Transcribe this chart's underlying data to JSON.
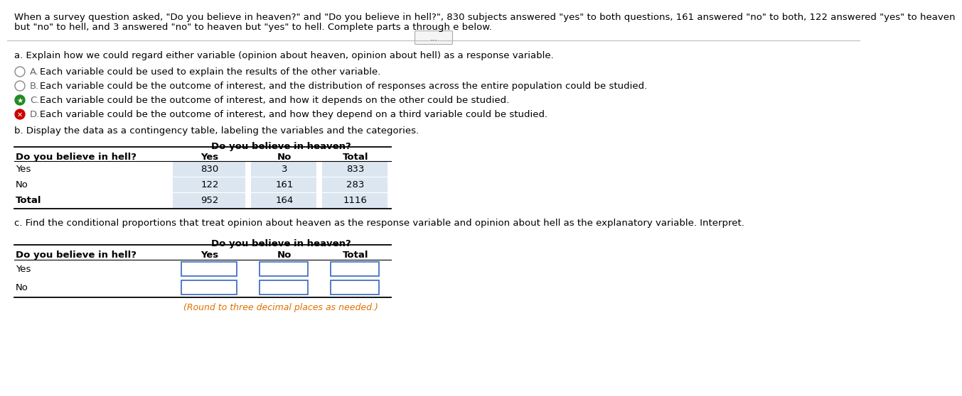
{
  "intro_line1": "When a survey question asked, \"Do you believe in heaven?\" and \"Do you believe in hell?\", 830 subjects answered \"yes\" to both questions, 161 answered \"no\" to both, 122 answered \"yes\" to heaven",
  "intro_line2": "but \"no\" to hell, and 3 answered \"no\" to heaven but \"yes\" to hell. Complete parts a through e below.",
  "ellipsis_button": "...",
  "part_a_label": "a. Explain how we could regard either variable (opinion about heaven, opinion about hell) as a response variable.",
  "options": [
    {
      "letter": "A",
      "text": "Each variable could be used to explain the results of the other variable.",
      "selected": false,
      "correct": false,
      "wrong": false
    },
    {
      "letter": "B",
      "text": "Each variable could be the outcome of interest, and the distribution of responses across the entire population could be studied.",
      "selected": false,
      "correct": false,
      "wrong": false
    },
    {
      "letter": "C",
      "text": "Each variable could be the outcome of interest, and how it depends on the other could be studied.",
      "selected": true,
      "correct": true,
      "wrong": false
    },
    {
      "letter": "D",
      "text": "Each variable could be the outcome of interest, and how they depend on a third variable could be studied.",
      "selected": true,
      "correct": false,
      "wrong": true
    }
  ],
  "part_b_label": "b. Display the data as a contingency table, labeling the variables and the categories.",
  "table1_header_col": "Do you believe in heaven?",
  "table1_row_header": "Do you believe in hell?",
  "table1_cols": [
    "Yes",
    "No",
    "Total"
  ],
  "table1_rows": [
    "Yes",
    "No",
    "Total"
  ],
  "table1_data": [
    [
      830,
      3,
      833
    ],
    [
      122,
      161,
      283
    ],
    [
      952,
      164,
      1116
    ]
  ],
  "part_c_label": "c. Find the conditional proportions that treat opinion about heaven as the response variable and opinion about hell as the explanatory variable. Interpret.",
  "table2_header_col": "Do you believe in heaven?",
  "table2_row_header": "Do you believe in hell?",
  "table2_cols": [
    "Yes",
    "No",
    "Total"
  ],
  "table2_rows": [
    "Yes",
    "No"
  ],
  "table2_note": "(Round to three decimal places as needed.)",
  "bg_color": "#ffffff",
  "text_color": "#000000",
  "cell_highlight_color": "#dce6f1",
  "input_box_color": "#4472c4",
  "orange_note_color": "#e07000"
}
